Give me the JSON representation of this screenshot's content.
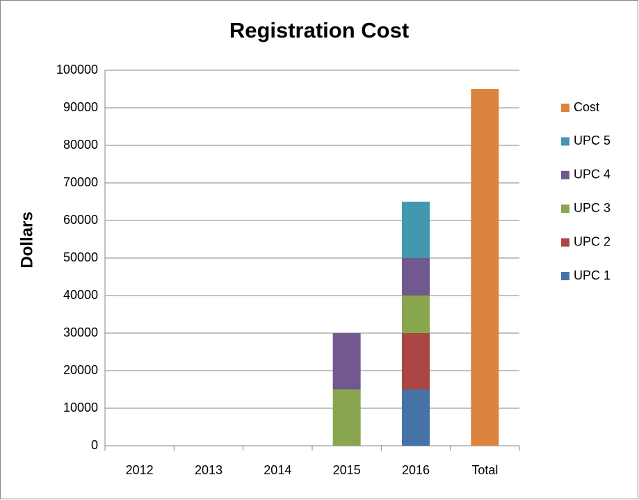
{
  "chart_data": {
    "type": "stacked_bar",
    "title": "Registration Cost",
    "y_label": "Dollars",
    "categories": [
      "2012",
      "2013",
      "2014",
      "2015",
      "2016",
      "Total"
    ],
    "series": [
      {
        "name": "UPC 1",
        "color": "#4572a7",
        "values": [
          null,
          null,
          null,
          null,
          15000,
          null
        ]
      },
      {
        "name": "UPC 2",
        "color": "#aa4643",
        "values": [
          null,
          null,
          null,
          null,
          15000,
          null
        ]
      },
      {
        "name": "UPC 3",
        "color": "#89a54e",
        "values": [
          null,
          null,
          null,
          15000,
          10000,
          null
        ]
      },
      {
        "name": "UPC 4",
        "color": "#71588f",
        "values": [
          null,
          null,
          null,
          15000,
          10000,
          null
        ]
      },
      {
        "name": "UPC 5",
        "color": "#4198af",
        "values": [
          null,
          null,
          null,
          null,
          15000,
          null
        ]
      },
      {
        "name": "Cost",
        "color": "#db843d",
        "values": [
          null,
          null,
          null,
          null,
          null,
          95000
        ]
      }
    ],
    "ylim": [
      0,
      100000
    ],
    "yticks": [
      0,
      10000,
      20000,
      30000,
      40000,
      50000,
      60000,
      70000,
      80000,
      90000,
      100000
    ],
    "grid": true,
    "legend": "right"
  }
}
